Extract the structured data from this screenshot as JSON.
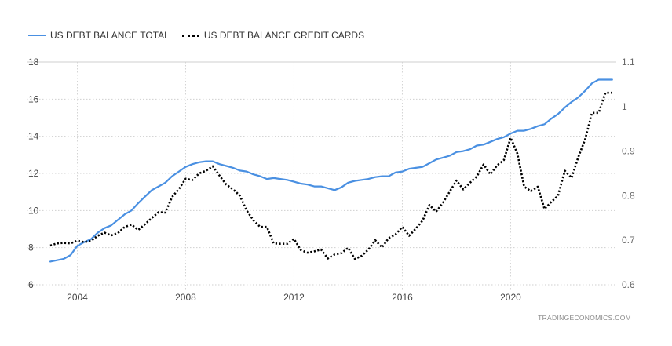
{
  "chart_data": {
    "type": "line",
    "title": "",
    "xlabel": "",
    "ylabel": "",
    "x_ticks": [
      "2004",
      "2008",
      "2012",
      "2016",
      "2020"
    ],
    "x_tick_values": [
      2004,
      2008,
      2012,
      2016,
      2020
    ],
    "xlim": [
      2003.0,
      2023.9
    ],
    "y_left": {
      "lim": [
        6,
        18
      ],
      "ticks": [
        "6",
        "8",
        "10",
        "12",
        "14",
        "16",
        "18"
      ]
    },
    "y_right": {
      "lim": [
        0.6,
        1.1
      ],
      "ticks": [
        "0.6",
        "0.7",
        "0.8",
        "0.9",
        "1",
        "1.1"
      ]
    },
    "grid": true,
    "legend_position": "top-left",
    "series": [
      {
        "name": "US DEBT BALANCE TOTAL",
        "axis": "left",
        "style": "solid",
        "color": "#4a90e2",
        "x": [
          2003.0,
          2003.5,
          2003.75,
          2004.0,
          2004.25,
          2004.5,
          2004.75,
          2005.0,
          2005.25,
          2005.5,
          2005.75,
          2006.0,
          2006.25,
          2006.5,
          2006.75,
          2007.0,
          2007.25,
          2007.5,
          2007.75,
          2008.0,
          2008.25,
          2008.5,
          2008.75,
          2009.0,
          2009.25,
          2009.5,
          2009.75,
          2010.0,
          2010.25,
          2010.5,
          2010.75,
          2011.0,
          2011.25,
          2011.5,
          2011.75,
          2012.0,
          2012.25,
          2012.5,
          2012.75,
          2013.0,
          2013.25,
          2013.5,
          2013.75,
          2014.0,
          2014.25,
          2014.5,
          2014.75,
          2015.0,
          2015.25,
          2015.5,
          2015.75,
          2016.0,
          2016.25,
          2016.5,
          2016.75,
          2017.0,
          2017.25,
          2017.5,
          2017.75,
          2018.0,
          2018.25,
          2018.5,
          2018.75,
          2019.0,
          2019.25,
          2019.5,
          2019.75,
          2020.0,
          2020.25,
          2020.5,
          2020.75,
          2021.0,
          2021.25,
          2021.5,
          2021.75,
          2022.0,
          2022.25,
          2022.5,
          2022.75,
          2023.0,
          2023.25,
          2023.5,
          2023.75
        ],
        "values": [
          7.25,
          7.4,
          7.6,
          8.1,
          8.3,
          8.45,
          8.8,
          9.05,
          9.2,
          9.5,
          9.8,
          10.0,
          10.4,
          10.75,
          11.1,
          11.3,
          11.5,
          11.85,
          12.1,
          12.35,
          12.5,
          12.6,
          12.65,
          12.65,
          12.5,
          12.4,
          12.3,
          12.15,
          12.1,
          11.95,
          11.85,
          11.7,
          11.75,
          11.7,
          11.65,
          11.55,
          11.45,
          11.4,
          11.3,
          11.3,
          11.2,
          11.1,
          11.25,
          11.5,
          11.6,
          11.65,
          11.7,
          11.8,
          11.85,
          11.85,
          12.05,
          12.1,
          12.25,
          12.3,
          12.35,
          12.55,
          12.75,
          12.85,
          12.95,
          13.15,
          13.2,
          13.3,
          13.5,
          13.55,
          13.7,
          13.85,
          13.95,
          14.15,
          14.3,
          14.3,
          14.4,
          14.55,
          14.65,
          14.95,
          15.2,
          15.55,
          15.85,
          16.1,
          16.45,
          16.85,
          17.05,
          17.05,
          17.05
        ]
      },
      {
        "name": "US DEBT BALANCE CREDIT CARDS",
        "axis": "right",
        "style": "dotted",
        "color": "#000000",
        "x": [
          2003.0,
          2003.25,
          2003.5,
          2003.75,
          2004.0,
          2004.25,
          2004.5,
          2004.75,
          2005.0,
          2005.25,
          2005.5,
          2005.75,
          2006.0,
          2006.25,
          2006.5,
          2006.75,
          2007.0,
          2007.25,
          2007.5,
          2007.75,
          2008.0,
          2008.25,
          2008.5,
          2008.75,
          2009.0,
          2009.25,
          2009.5,
          2009.75,
          2010.0,
          2010.25,
          2010.5,
          2010.75,
          2011.0,
          2011.25,
          2011.5,
          2011.75,
          2012.0,
          2012.25,
          2012.5,
          2012.75,
          2013.0,
          2013.25,
          2013.5,
          2013.75,
          2014.0,
          2014.25,
          2014.5,
          2014.75,
          2015.0,
          2015.25,
          2015.5,
          2015.75,
          2016.0,
          2016.25,
          2016.5,
          2016.75,
          2017.0,
          2017.25,
          2017.5,
          2017.75,
          2018.0,
          2018.25,
          2018.5,
          2018.75,
          2019.0,
          2019.25,
          2019.5,
          2019.75,
          2020.0,
          2020.25,
          2020.5,
          2020.75,
          2021.0,
          2021.25,
          2021.5,
          2021.75,
          2022.0,
          2022.25,
          2022.5,
          2022.75,
          2023.0,
          2023.25,
          2023.5,
          2023.75
        ],
        "values": [
          0.688,
          0.693,
          0.694,
          0.693,
          0.699,
          0.696,
          0.698,
          0.71,
          0.717,
          0.711,
          0.716,
          0.73,
          0.735,
          0.723,
          0.736,
          0.75,
          0.763,
          0.762,
          0.797,
          0.815,
          0.838,
          0.835,
          0.85,
          0.856,
          0.866,
          0.845,
          0.825,
          0.814,
          0.8,
          0.767,
          0.745,
          0.73,
          0.73,
          0.693,
          0.692,
          0.692,
          0.703,
          0.678,
          0.672,
          0.675,
          0.679,
          0.659,
          0.668,
          0.671,
          0.683,
          0.658,
          0.665,
          0.679,
          0.7,
          0.684,
          0.705,
          0.713,
          0.73,
          0.71,
          0.726,
          0.744,
          0.779,
          0.764,
          0.784,
          0.809,
          0.834,
          0.814,
          0.829,
          0.843,
          0.87,
          0.848,
          0.868,
          0.88,
          0.93,
          0.894,
          0.82,
          0.81,
          0.82,
          0.77,
          0.786,
          0.8,
          0.856,
          0.84,
          0.887,
          0.926,
          0.986,
          0.986,
          1.031,
          1.031
        ]
      }
    ],
    "source": "TRADINGECONOMICS.COM"
  }
}
